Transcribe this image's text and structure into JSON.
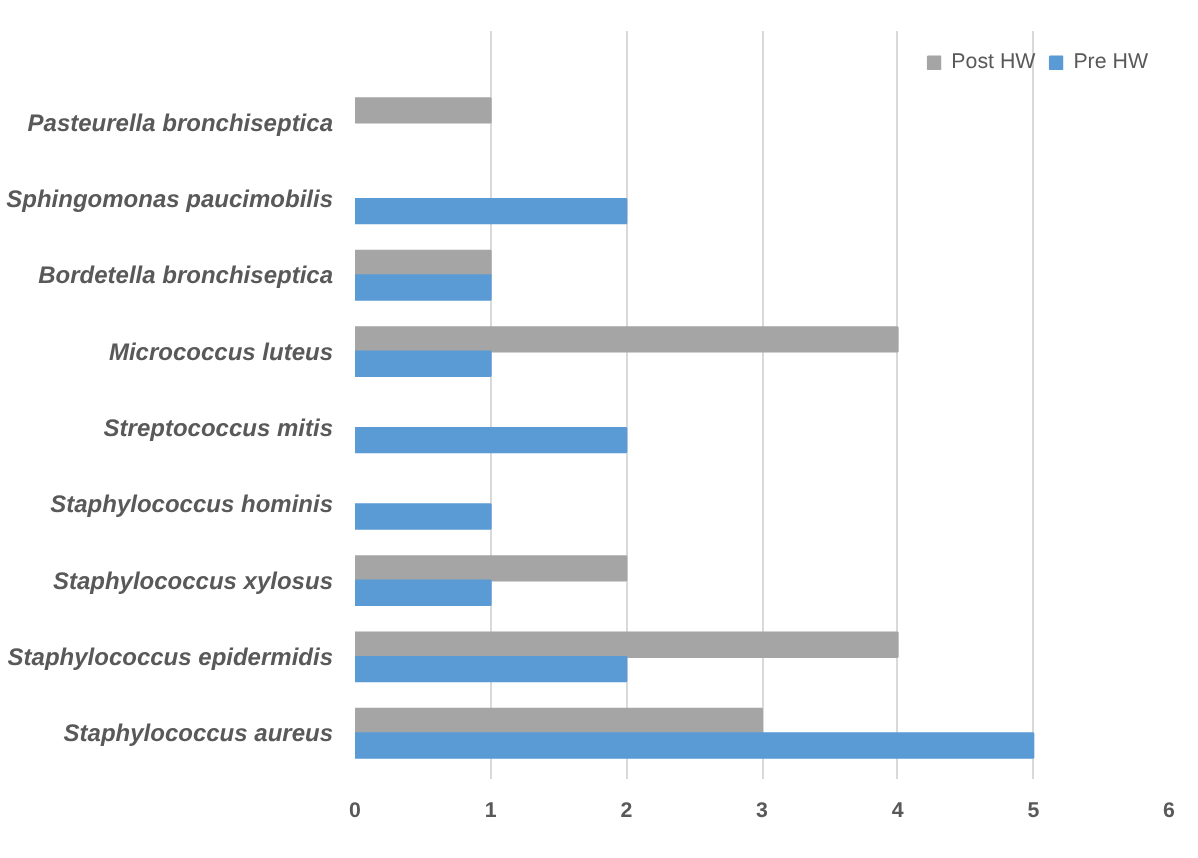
{
  "chart_data": {
    "type": "bar",
    "orientation": "horizontal",
    "categories": [
      "Pasteurella bronchiseptica",
      "Sphingomonas paucimobilis",
      "Bordetella bronchiseptica",
      "Micrococcus luteus",
      "Streptococcus mitis",
      "Staphylococcus hominis",
      "Staphylococcus xylosus",
      "Staphylococcus epidermidis",
      "Staphylococcus aureus"
    ],
    "series": [
      {
        "name": "Post HW",
        "color": "#a5a5a5",
        "values": [
          1,
          null,
          1,
          4,
          null,
          null,
          2,
          4,
          3
        ]
      },
      {
        "name": "Pre HW",
        "color": "#5b9bd5",
        "values": [
          null,
          2,
          1,
          1,
          2,
          1,
          1,
          2,
          5
        ]
      }
    ],
    "xlim": [
      0,
      6
    ],
    "xticks": [
      0,
      1,
      2,
      3,
      4,
      5,
      6
    ],
    "grid": "x",
    "legend": "top right"
  }
}
